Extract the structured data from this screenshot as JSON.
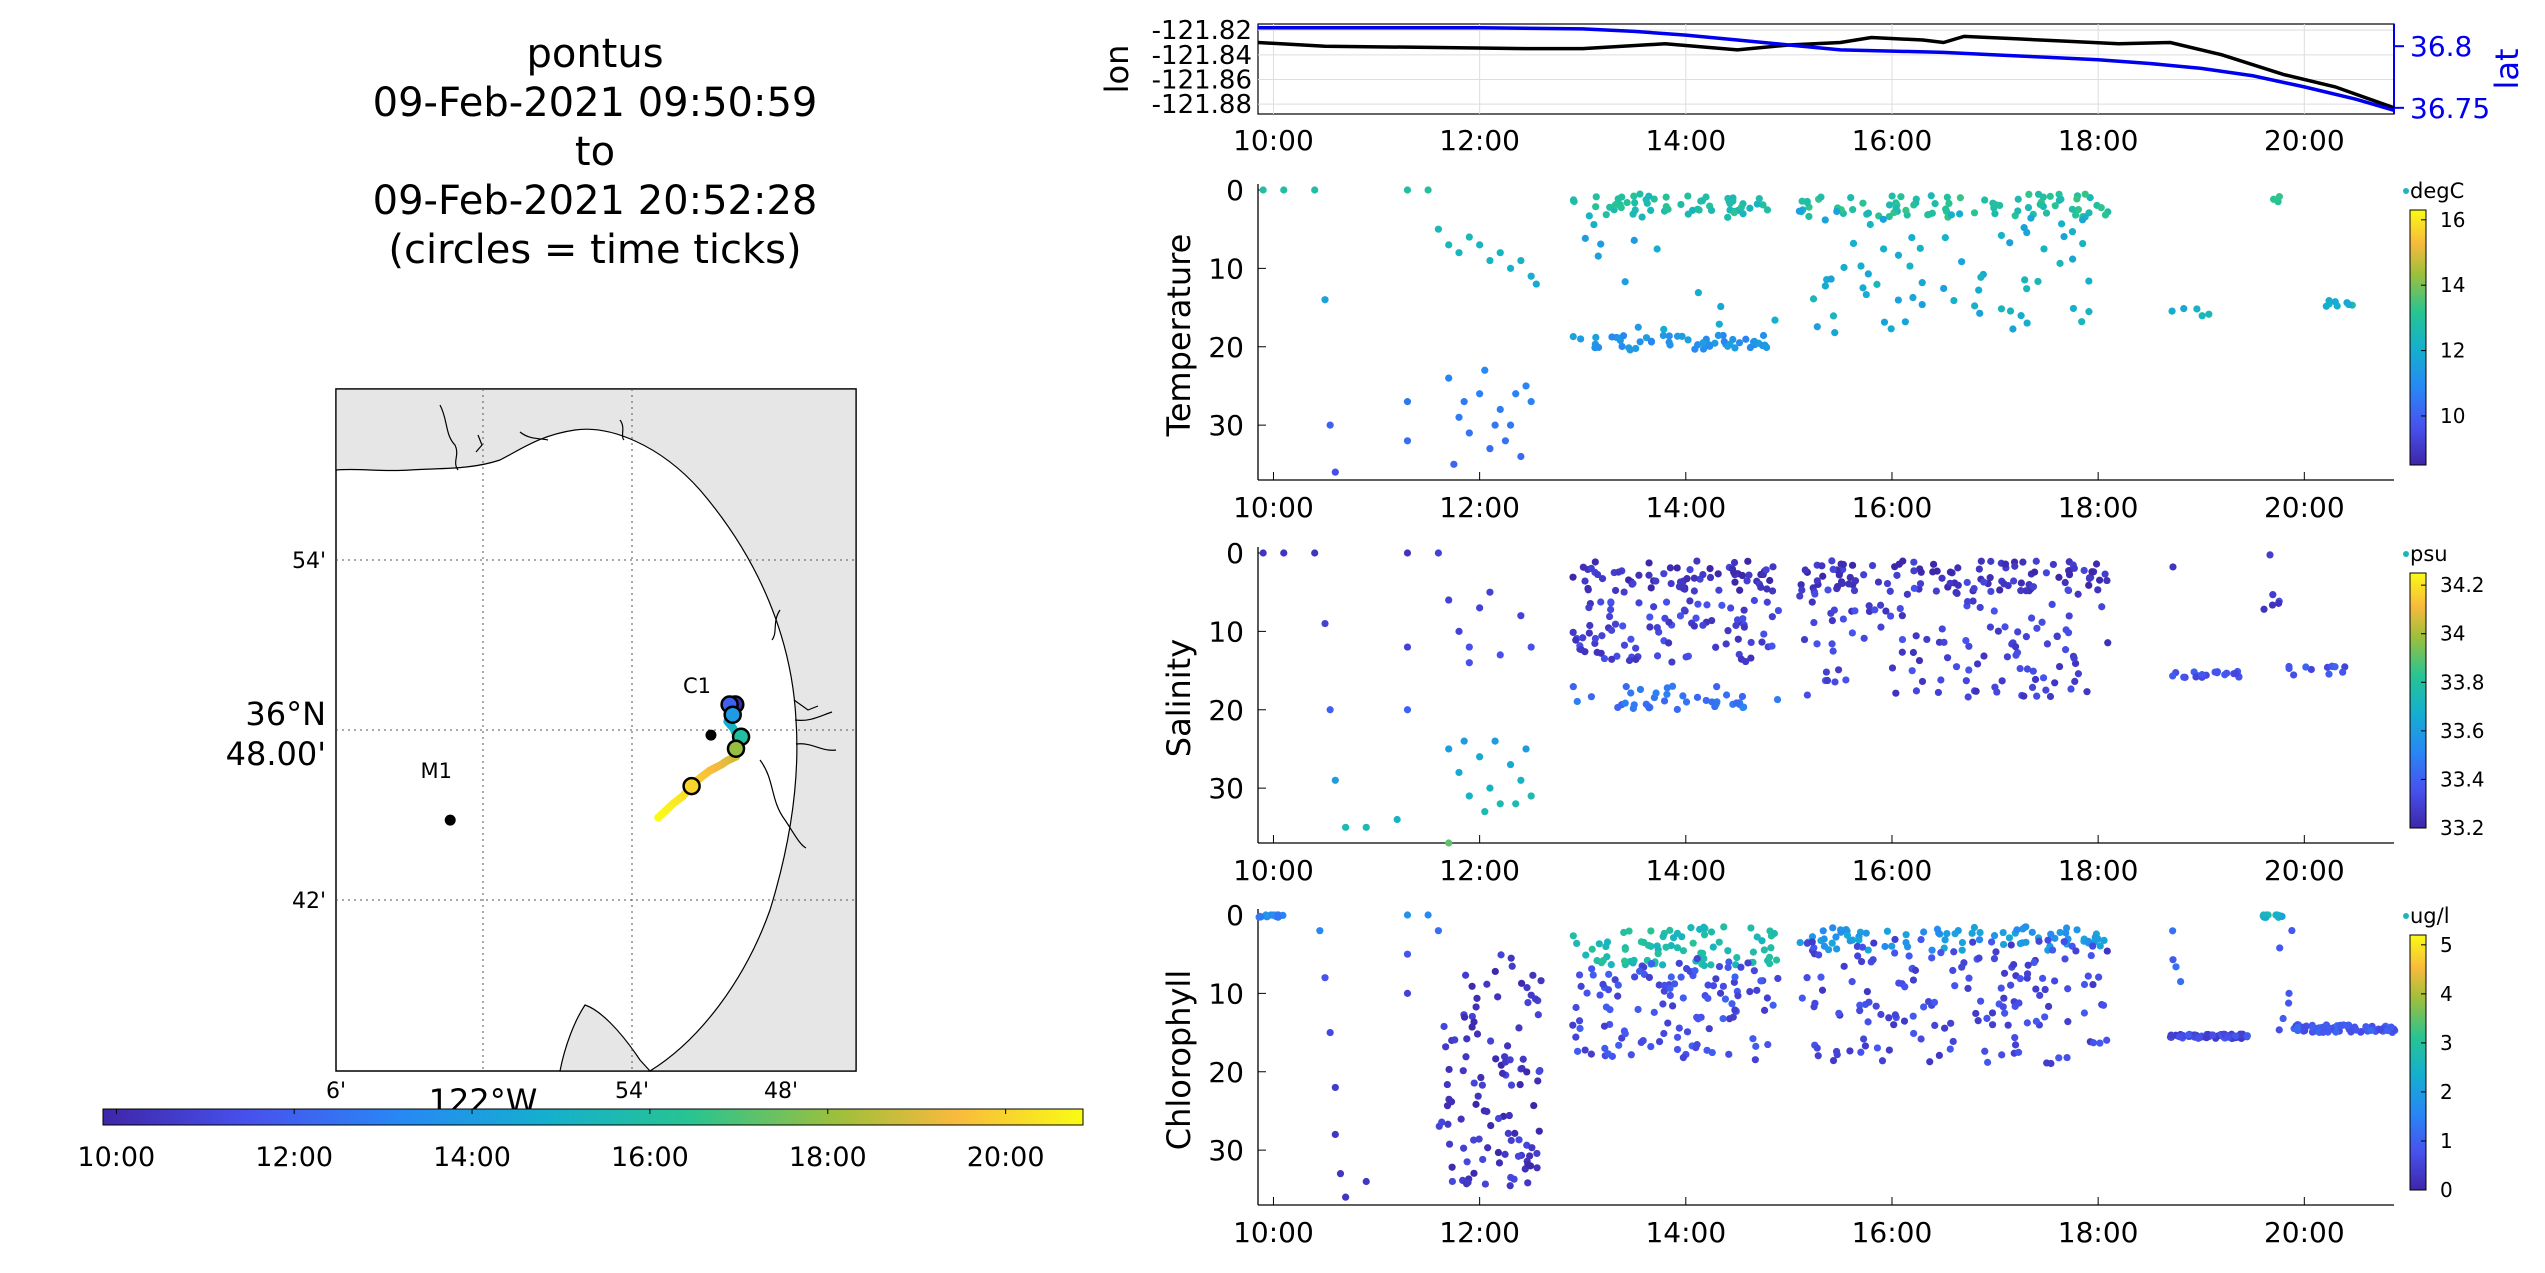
{
  "title": {
    "lines": [
      "pontus",
      "09-Feb-2021 09:50:59",
      "to",
      "09-Feb-2021 20:52:28",
      "(circles = time ticks)"
    ]
  },
  "colors": {
    "lon_line": "#000000",
    "lat_line": "#0000ee",
    "map_land": "#e6e6e6",
    "parula_low": "#3e26a8",
    "parula_high": "#f9fb15"
  },
  "map": {
    "lat_ticks": [
      "54'",
      "36°N\n48.00'",
      "42'"
    ],
    "lon_ticks": [
      "6'",
      "54'",
      "48'"
    ],
    "lon_label": "122°W",
    "lat_center_top": "36°N",
    "lat_center_bottom": "48.00'",
    "stations": [
      {
        "name": "C1",
        "lon": -121.847,
        "lat": 36.797
      },
      {
        "name": "M1",
        "lon": -122.022,
        "lat": 36.747
      }
    ],
    "time_colorbar_ticks": [
      "10:00",
      "12:00",
      "14:00",
      "16:00",
      "18:00",
      "20:00"
    ]
  },
  "chart_data": [
    {
      "type": "line",
      "name": "track",
      "x_ticks": [
        "10:00",
        "12:00",
        "14:00",
        "16:00",
        "18:00",
        "20:00"
      ],
      "xlim_hours": [
        9.85,
        20.87
      ],
      "left_axis": {
        "label": "lon",
        "ticks": [
          "-121.82",
          "-121.84",
          "-121.86",
          "-121.88"
        ],
        "ylim": [
          -121.888,
          -121.815
        ]
      },
      "right_axis": {
        "label": "lat",
        "ticks": [
          "36.8",
          "36.75"
        ],
        "ylim": [
          36.745,
          36.818
        ]
      },
      "series": [
        {
          "axis": "left",
          "x": [
            9.85,
            10.5,
            11.5,
            12.5,
            13.0,
            13.8,
            14.5,
            15.0,
            15.5,
            15.8,
            16.3,
            16.5,
            16.7,
            17.2,
            17.7,
            18.2,
            18.7,
            19.2,
            19.8,
            20.3,
            20.87
          ],
          "values": [
            -121.83,
            -121.833,
            -121.834,
            -121.835,
            -121.835,
            -121.831,
            -121.836,
            -121.832,
            -121.83,
            -121.826,
            -121.828,
            -121.83,
            -121.825,
            -121.827,
            -121.829,
            -121.831,
            -121.83,
            -121.84,
            -121.856,
            -121.866,
            -121.883
          ]
        },
        {
          "axis": "right",
          "x": [
            9.85,
            11.0,
            12.0,
            13.0,
            13.5,
            14.0,
            14.5,
            15.0,
            15.5,
            16.0,
            16.5,
            17.0,
            17.5,
            18.0,
            18.5,
            19.0,
            19.5,
            20.0,
            20.5,
            20.87
          ],
          "values": [
            36.815,
            36.815,
            36.815,
            36.814,
            36.812,
            36.809,
            36.805,
            36.801,
            36.797,
            36.796,
            36.795,
            36.793,
            36.791,
            36.789,
            36.786,
            36.782,
            36.776,
            36.767,
            36.757,
            36.748
          ]
        }
      ]
    },
    {
      "type": "scatter",
      "name": "temperature",
      "ylabel": "Temperature",
      "units": "degC",
      "x_ticks": [
        "10:00",
        "12:00",
        "14:00",
        "16:00",
        "18:00",
        "20:00"
      ],
      "y_ticks": [
        "0",
        "10",
        "20",
        "30"
      ],
      "ylim": [
        0,
        37
      ],
      "cbar_ticks": [
        "16",
        "14",
        "12",
        "10"
      ],
      "clim": [
        8.5,
        16.3
      ],
      "samples": [
        [
          9.9,
          0,
          12.8
        ],
        [
          10.1,
          0,
          12.8
        ],
        [
          10.4,
          0,
          12.8
        ],
        [
          10.5,
          14,
          11.6
        ],
        [
          10.55,
          30,
          10
        ],
        [
          10.6,
          36,
          9.6
        ],
        [
          11.3,
          27,
          10.5
        ],
        [
          11.3,
          32,
          10.3
        ],
        [
          11.3,
          0,
          12.8
        ],
        [
          11.5,
          0,
          12.9
        ],
        [
          11.6,
          5,
          12.5
        ],
        [
          11.7,
          7,
          12.4
        ],
        [
          11.8,
          8,
          12.3
        ],
        [
          11.9,
          6,
          12.5
        ],
        [
          12.0,
          7,
          12.3
        ],
        [
          12.1,
          9,
          12.2
        ],
        [
          12.2,
          8,
          12.3
        ],
        [
          12.3,
          10,
          12.1
        ],
        [
          12.4,
          9,
          12.2
        ],
        [
          12.5,
          11,
          12.0
        ],
        [
          12.55,
          12,
          11.9
        ],
        [
          11.7,
          24,
          10.8
        ],
        [
          11.8,
          29,
          10.6
        ],
        [
          11.9,
          31,
          10.4
        ],
        [
          12.0,
          26,
          10.7
        ],
        [
          12.1,
          33,
          10.3
        ],
        [
          12.2,
          28,
          10.6
        ],
        [
          12.3,
          30,
          10.5
        ],
        [
          12.4,
          34,
          10.2
        ],
        [
          12.5,
          27,
          10.7
        ],
        [
          11.75,
          35,
          10.1
        ],
        [
          12.05,
          23,
          10.9
        ],
        [
          12.25,
          32,
          10.4
        ],
        [
          12.45,
          25,
          10.8
        ],
        [
          11.85,
          27,
          10.6
        ],
        [
          12.15,
          30,
          10.5
        ],
        [
          12.35,
          26,
          10.7
        ]
      ],
      "fill_segments": [
        {
          "x0": 12.9,
          "x1": 14.8,
          "y": 2,
          "c": 12.7,
          "spread": 1.5,
          "n": 60
        },
        {
          "x0": 12.9,
          "x1": 14.8,
          "y": 19.5,
          "c": 11.2,
          "spread": 1.0,
          "n": 55
        },
        {
          "x0": 13.0,
          "x1": 14.9,
          "y": 12,
          "c": 11.8,
          "spread": 8.0,
          "n": 14
        },
        {
          "x0": 15.1,
          "x1": 18.1,
          "y": 2,
          "c": 12.9,
          "spread": 1.5,
          "n": 80
        },
        {
          "x0": 15.1,
          "x1": 18.1,
          "y": 11,
          "c": 12.0,
          "spread": 8.5,
          "n": 70
        },
        {
          "x0": 18.7,
          "x1": 19.1,
          "y": 15.5,
          "c": 12.1,
          "spread": 0.6,
          "n": 5
        },
        {
          "x0": 19.7,
          "x1": 19.8,
          "y": 1,
          "c": 12.9,
          "spread": 1.0,
          "n": 3
        },
        {
          "x0": 20.2,
          "x1": 20.55,
          "y": 14.5,
          "c": 12.2,
          "spread": 0.6,
          "n": 8
        }
      ]
    },
    {
      "type": "scatter",
      "name": "salinity",
      "ylabel": "Salinity",
      "units": "psu",
      "x_ticks": [
        "10:00",
        "12:00",
        "14:00",
        "16:00",
        "18:00",
        "20:00"
      ],
      "y_ticks": [
        "0",
        "10",
        "20",
        "30"
      ],
      "ylim": [
        0,
        37
      ],
      "cbar_ticks": [
        "34.2",
        "34",
        "33.8",
        "33.6",
        "33.4",
        "33.2"
      ],
      "clim": [
        33.2,
        34.25
      ],
      "samples": [
        [
          9.9,
          0,
          33.25
        ],
        [
          10.1,
          0,
          33.25
        ],
        [
          10.4,
          0,
          33.25
        ],
        [
          10.5,
          9,
          33.3
        ],
        [
          10.55,
          20,
          33.4
        ],
        [
          10.6,
          29,
          33.6
        ],
        [
          10.7,
          35,
          33.75
        ],
        [
          10.9,
          35,
          33.75
        ],
        [
          11.2,
          34,
          33.7
        ],
        [
          11.3,
          20,
          33.4
        ],
        [
          11.3,
          12,
          33.3
        ],
        [
          11.3,
          0,
          33.25
        ],
        [
          11.6,
          0,
          33.3
        ],
        [
          11.7,
          37,
          33.9
        ],
        [
          11.7,
          6,
          33.3
        ],
        [
          11.8,
          10,
          33.3
        ],
        [
          11.9,
          12,
          33.35
        ],
        [
          12.0,
          7,
          33.3
        ],
        [
          12.2,
          13,
          33.35
        ],
        [
          12.4,
          8,
          33.3
        ],
        [
          12.5,
          12,
          33.35
        ],
        [
          11.9,
          14,
          33.35
        ],
        [
          12.1,
          5,
          33.3
        ],
        [
          11.7,
          25,
          33.6
        ],
        [
          11.8,
          28,
          33.65
        ],
        [
          11.9,
          31,
          33.7
        ],
        [
          12.0,
          26,
          33.65
        ],
        [
          12.1,
          30,
          33.7
        ],
        [
          12.2,
          32,
          33.75
        ],
        [
          12.3,
          27,
          33.65
        ],
        [
          12.4,
          29,
          33.7
        ],
        [
          12.5,
          31,
          33.75
        ],
        [
          11.85,
          24,
          33.6
        ],
        [
          12.15,
          24,
          33.6
        ],
        [
          12.45,
          25,
          33.6
        ],
        [
          12.05,
          33,
          33.75
        ],
        [
          12.35,
          32,
          33.75
        ]
      ],
      "fill_segments": [
        {
          "x0": 12.9,
          "x1": 14.9,
          "y": 3,
          "c": 33.25,
          "spread": 2.0,
          "n": 70
        },
        {
          "x0": 12.9,
          "x1": 14.9,
          "y": 10,
          "c": 33.3,
          "spread": 4.0,
          "n": 90
        },
        {
          "x0": 12.9,
          "x1": 14.9,
          "y": 18.5,
          "c": 33.45,
          "spread": 1.5,
          "n": 40
        },
        {
          "x0": 15.1,
          "x1": 18.1,
          "y": 3,
          "c": 33.25,
          "spread": 2.0,
          "n": 100
        },
        {
          "x0": 15.1,
          "x1": 18.1,
          "y": 11,
          "c": 33.3,
          "spread": 7.5,
          "n": 130
        },
        {
          "x0": 18.7,
          "x1": 19.4,
          "y": 15.5,
          "c": 33.35,
          "spread": 0.4,
          "n": 20
        },
        {
          "x0": 18.7,
          "x1": 18.75,
          "y": 2,
          "c": 33.25,
          "spread": 0.5,
          "n": 1
        },
        {
          "x0": 19.6,
          "x1": 19.8,
          "y": 4,
          "c": 33.3,
          "spread": 4.0,
          "n": 6
        },
        {
          "x0": 19.8,
          "x1": 20.4,
          "y": 15,
          "c": 33.35,
          "spread": 0.6,
          "n": 12
        }
      ]
    },
    {
      "type": "scatter",
      "name": "chlorophyll",
      "ylabel": "Chlorophyll",
      "units": "ug/l",
      "x_ticks": [
        "10:00",
        "12:00",
        "14:00",
        "16:00",
        "18:00",
        "20:00"
      ],
      "y_ticks": [
        "0",
        "10",
        "20",
        "30"
      ],
      "ylim": [
        0,
        37
      ],
      "cbar_ticks": [
        "5",
        "4",
        "3",
        "2",
        "1",
        "0"
      ],
      "clim": [
        0,
        5.2
      ],
      "samples": [
        [
          10.45,
          2,
          1.6
        ],
        [
          10.5,
          8,
          0.8
        ],
        [
          10.55,
          15,
          0.6
        ],
        [
          10.6,
          22,
          0.4
        ],
        [
          10.6,
          28,
          0.3
        ],
        [
          10.65,
          33,
          0.3
        ],
        [
          10.7,
          36,
          0.3
        ],
        [
          10.9,
          34,
          0.3
        ],
        [
          11.3,
          0,
          1.8
        ],
        [
          11.3,
          5,
          0.8
        ],
        [
          11.3,
          10,
          0.5
        ],
        [
          11.5,
          0,
          1.6
        ],
        [
          11.6,
          2,
          1.2
        ]
      ],
      "fill_segments": [
        {
          "x0": 9.85,
          "x1": 10.1,
          "y": 0,
          "c": 1.6,
          "spread": 0.3,
          "n": 15
        },
        {
          "x0": 11.6,
          "x1": 12.6,
          "y": 20,
          "c": 0.3,
          "spread": 15.0,
          "n": 110
        },
        {
          "x0": 12.9,
          "x1": 14.9,
          "y": 4,
          "c": 2.8,
          "spread": 2.5,
          "n": 80
        },
        {
          "x0": 12.9,
          "x1": 14.9,
          "y": 12,
          "c": 0.7,
          "spread": 6.5,
          "n": 120
        },
        {
          "x0": 15.1,
          "x1": 18.1,
          "y": 3,
          "c": 1.9,
          "spread": 1.5,
          "n": 80
        },
        {
          "x0": 15.1,
          "x1": 18.1,
          "y": 11,
          "c": 0.6,
          "spread": 8.0,
          "n": 160
        },
        {
          "x0": 18.7,
          "x1": 19.45,
          "y": 15.5,
          "c": 0.6,
          "spread": 0.3,
          "n": 60
        },
        {
          "x0": 18.7,
          "x1": 18.8,
          "y": 5,
          "c": 1.0,
          "spread": 4.0,
          "n": 4
        },
        {
          "x0": 19.6,
          "x1": 19.8,
          "y": 0,
          "c": 2.4,
          "spread": 0.4,
          "n": 14
        },
        {
          "x0": 19.75,
          "x1": 19.9,
          "y": 8,
          "c": 0.9,
          "spread": 7.0,
          "n": 6
        },
        {
          "x0": 19.9,
          "x1": 20.9,
          "y": 14.5,
          "c": 0.9,
          "spread": 0.5,
          "n": 70
        }
      ]
    }
  ]
}
